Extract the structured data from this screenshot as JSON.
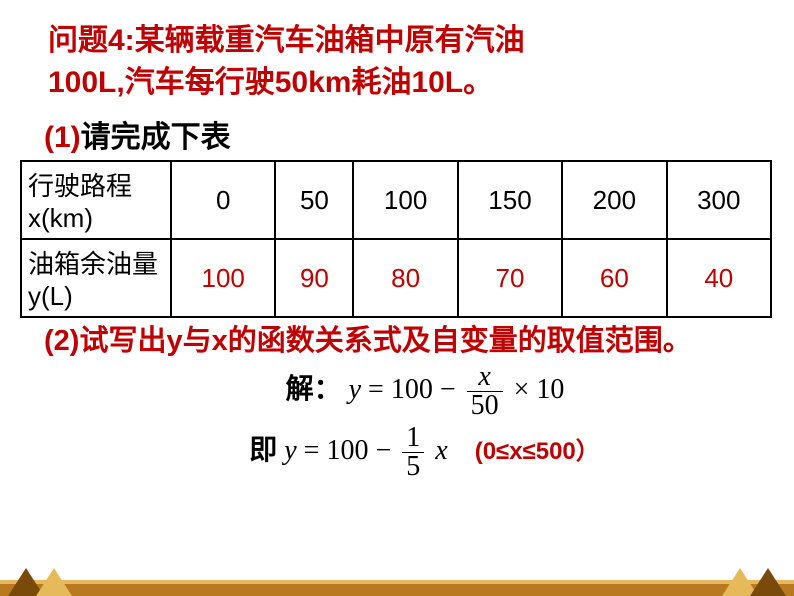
{
  "colors": {
    "accent_red": "#c00000",
    "text_black": "#000000",
    "footer_dark": "#b97a1f",
    "footer_light": "#e6b95a",
    "footer_tri_dark": "#7a4a0a",
    "table_border": "#000000",
    "background": "#ffffff"
  },
  "fonts": {
    "header_size": 30,
    "table_size": 26,
    "math_size": 28,
    "range_size": 24
  },
  "problem": {
    "label": "问题4:",
    "text1": "某辆载重汽车油箱中原有汽油",
    "text2": "100L,汽车每行驶50km耗油10L。"
  },
  "q1": {
    "label": "(1)",
    "text": "请完成下表"
  },
  "table": {
    "row1_label": "行驶路程x(km)",
    "row2_label": "油箱余油量y(L)",
    "columns": [
      {
        "x": "0",
        "y": "100"
      },
      {
        "x": "50",
        "y": "90"
      },
      {
        "x": "100",
        "y": "80"
      },
      {
        "x": "150",
        "y": "70"
      },
      {
        "x": "200",
        "y": "60"
      },
      {
        "x": "300",
        "y": "40"
      }
    ]
  },
  "q2": {
    "label": "(2)",
    "text": "试写出y与x的函数关系式及自变量的取值范围。"
  },
  "solution": {
    "solve_label": "解：",
    "eq1_lhs": "y",
    "eq": "=",
    "c100": "100",
    "minus": "−",
    "frac1_num": "x",
    "frac1_den": "50",
    "times": "×",
    "ten": "10",
    "ie_label": "即",
    "frac2_num": "1",
    "frac2_den": "5",
    "var_x": "x",
    "range": "(0≤x≤500）"
  }
}
